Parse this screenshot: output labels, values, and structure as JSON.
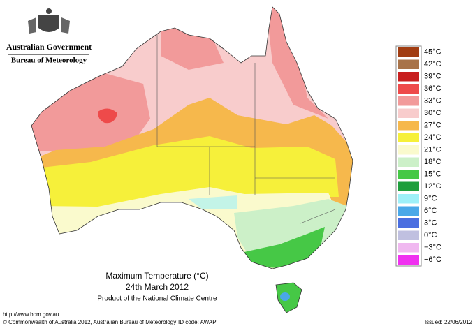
{
  "header": {
    "government": "Australian Government",
    "agency": "Bureau of Meteorology"
  },
  "map": {
    "title": "Maximum Temperature (°C)",
    "date": "24th March 2012",
    "product": "Product of the National Climate Centre"
  },
  "legend": {
    "items": [
      {
        "label": "45°C",
        "color": "#a13d12"
      },
      {
        "label": "42°C",
        "color": "#a87349"
      },
      {
        "label": "39°C",
        "color": "#c81e1e"
      },
      {
        "label": "36°C",
        "color": "#ee4a4a"
      },
      {
        "label": "33°C",
        "color": "#f29a9a"
      },
      {
        "label": "30°C",
        "color": "#f8cccc"
      },
      {
        "label": "27°C",
        "color": "#f6b84c"
      },
      {
        "label": "24°C",
        "color": "#f6f03a"
      },
      {
        "label": "21°C",
        "color": "#fafacd"
      },
      {
        "label": "18°C",
        "color": "#ccf0c8"
      },
      {
        "label": "15°C",
        "color": "#46c846"
      },
      {
        "label": "12°C",
        "color": "#1e9e3c"
      },
      {
        "label": "9°C",
        "color": "#9ef0f8"
      },
      {
        "label": "6°C",
        "color": "#4aa8e8"
      },
      {
        "label": "3°C",
        "color": "#4a6ee0"
      },
      {
        "label": "0°C",
        "color": "#c0c0e0"
      },
      {
        "label": "−3°C",
        "color": "#f0b8f0"
      },
      {
        "label": "−6°C",
        "color": "#f030f0"
      }
    ]
  },
  "footer": {
    "url": "http://www.bom.gov.au",
    "copyright": "© Commonwealth of Australia 2012, Australian Bureau of Meteorology",
    "id_code": "ID code: AWAP",
    "issued": "Issued: 22/06/2012"
  }
}
